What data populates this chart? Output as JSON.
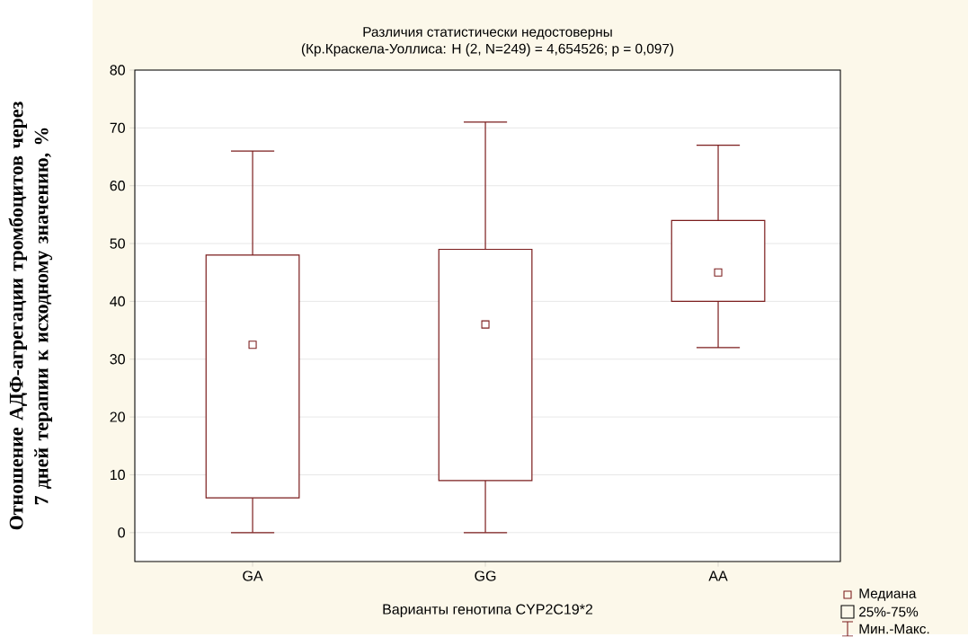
{
  "chart_data": {
    "type": "box",
    "title": "Различия статистически недостоверны",
    "subtitle": "(Кр.Краскела-Уоллиса: H (2, N=249) = 4,654526; p = 0,097)",
    "xlabel": "Варианты генотипа CYP2C19*2",
    "ylabel": "Отношение АДФ-агрегации  тромбоцитов через 7 дней терапии к исходному значению,  %",
    "categories": [
      "GA",
      "GG",
      "AA"
    ],
    "color": "#7b1c1c",
    "marker": "square",
    "boxes": [
      {
        "low": 0,
        "q1": 6,
        "median": 32.5,
        "q3": 48,
        "high": 66
      },
      {
        "low": 0,
        "q1": 9,
        "median": 36,
        "q3": 49,
        "high": 71
      },
      {
        "low": 32,
        "q1": 40,
        "median": 45,
        "q3": 54,
        "high": 67
      }
    ],
    "ylim": [
      -5,
      80
    ],
    "yticks": [
      0,
      10,
      20,
      30,
      40,
      50,
      60,
      70,
      80
    ],
    "grid": "y",
    "annotations": [
      "Медиана",
      "25%-75%",
      "Мин.-Макс."
    ]
  }
}
